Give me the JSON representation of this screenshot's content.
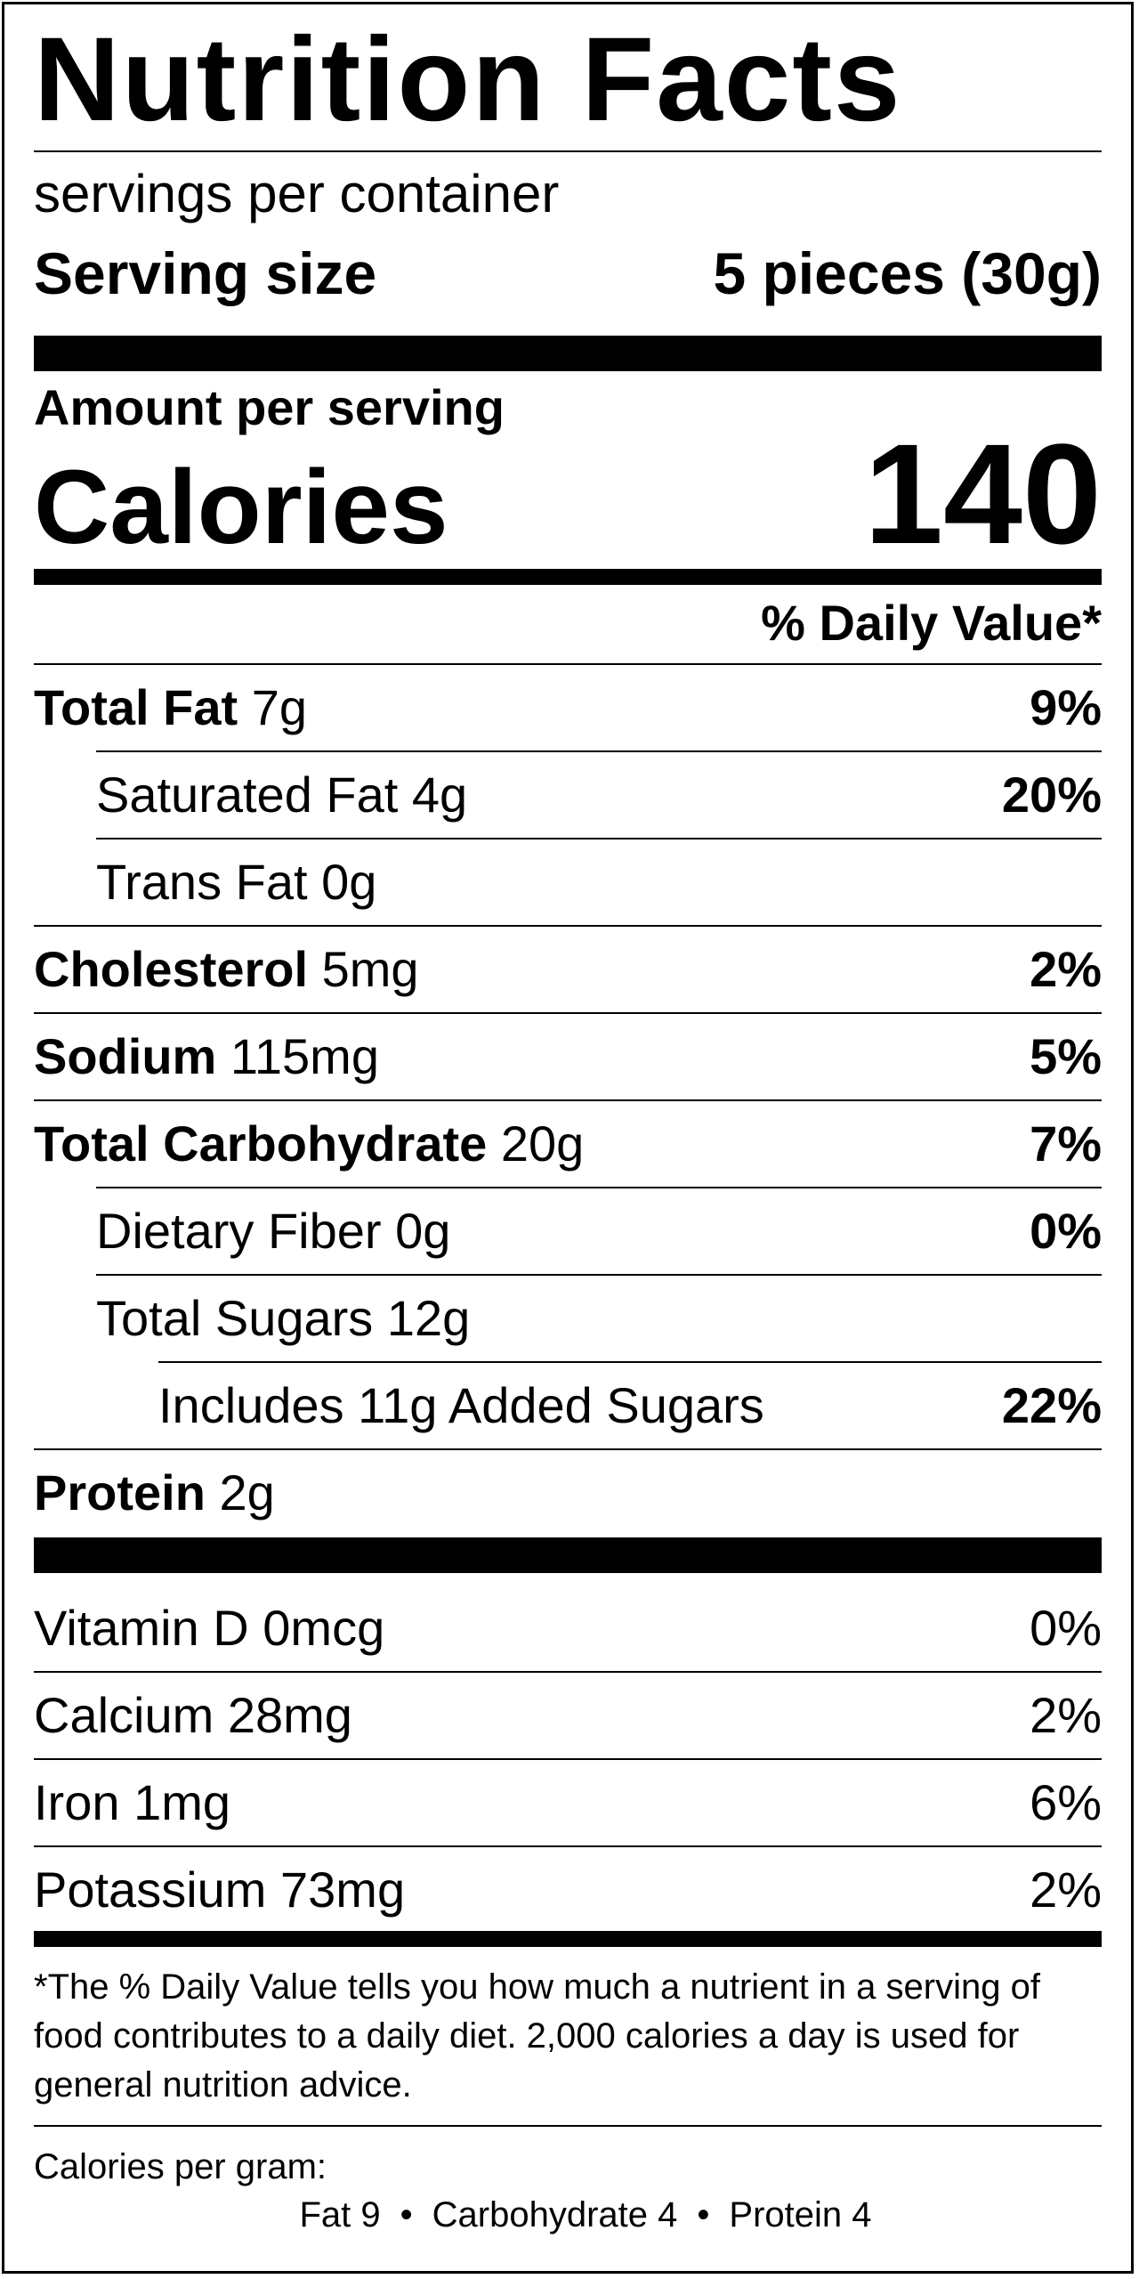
{
  "title": "Nutrition Facts",
  "servings_per_container": "servings per container",
  "serving_size": {
    "label": "Serving size",
    "value": "5 pieces (30g)"
  },
  "amount_per_serving": "Amount per serving",
  "calories": {
    "label": "Calories",
    "value": "140"
  },
  "daily_value_header": "% Daily Value*",
  "nutrients": [
    {
      "name": "Total Fat",
      "amount": "7g",
      "dv": "9%",
      "bold": true,
      "indent": 0
    },
    {
      "name": "Saturated Fat",
      "amount": "4g",
      "dv": "20%",
      "bold": false,
      "indent": 1
    },
    {
      "name": "Trans Fat",
      "amount": "0g",
      "dv": "",
      "bold": false,
      "indent": 1
    },
    {
      "name": "Cholesterol",
      "amount": "5mg",
      "dv": "2%",
      "bold": true,
      "indent": 0
    },
    {
      "name": "Sodium",
      "amount": "115mg",
      "dv": "5%",
      "bold": true,
      "indent": 0
    },
    {
      "name": "Total Carbohydrate",
      "amount": "20g",
      "dv": "7%",
      "bold": true,
      "indent": 0
    },
    {
      "name": "Dietary Fiber",
      "amount": "0g",
      "dv": "0%",
      "bold": false,
      "indent": 1
    },
    {
      "name": "Total Sugars",
      "amount": "12g",
      "dv": "",
      "bold": false,
      "indent": 1
    },
    {
      "name": "Includes 11g Added Sugars",
      "amount": "",
      "dv": "22%",
      "bold": false,
      "indent": 2
    },
    {
      "name": "Protein",
      "amount": "2g",
      "dv": "",
      "bold": true,
      "indent": 0
    }
  ],
  "vitamins": [
    {
      "name": "Vitamin D",
      "amount": "0mcg",
      "dv": "0%"
    },
    {
      "name": "Calcium",
      "amount": "28mg",
      "dv": "2%"
    },
    {
      "name": "Iron",
      "amount": "1mg",
      "dv": "6%"
    },
    {
      "name": "Potassium",
      "amount": "73mg",
      "dv": "2%"
    }
  ],
  "footnote": "*The % Daily Value tells you how much a nutrient in a serving of food contributes to a daily diet. 2,000 calories a day is used for general nutrition advice.",
  "calories_per_gram": {
    "title": "Calories per gram:",
    "fat": "Fat 9",
    "carbohydrate": "Carbohydrate 4",
    "protein": "Protein 4",
    "separator": "•"
  }
}
